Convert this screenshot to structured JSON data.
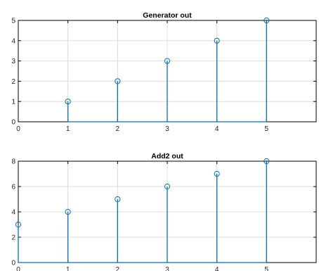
{
  "chart_data": [
    {
      "type": "stem",
      "title": "Generator out",
      "xlabel": "",
      "ylabel": "",
      "x": [
        1,
        2,
        3,
        4,
        5
      ],
      "values": [
        1,
        2,
        3,
        4,
        5
      ],
      "xlim": [
        0,
        6
      ],
      "ylim": [
        0,
        5
      ],
      "xticks": [
        "0",
        "1",
        "2",
        "3",
        "4",
        "5"
      ],
      "yticks": [
        "0",
        "1",
        "2",
        "3",
        "4",
        "5"
      ],
      "grid": true,
      "color": "#0072BD"
    },
    {
      "type": "stem",
      "title": "Add2 out",
      "xlabel": "",
      "ylabel": "",
      "x": [
        0,
        1,
        2,
        3,
        4,
        5
      ],
      "values": [
        3,
        4,
        5,
        6,
        7,
        8
      ],
      "xlim": [
        0,
        6
      ],
      "ylim": [
        0,
        8
      ],
      "xticks": [
        "0",
        "1",
        "2",
        "3",
        "4",
        "5"
      ],
      "yticks": [
        "0",
        "2",
        "4",
        "6",
        "8"
      ],
      "grid": true,
      "color": "#0072BD"
    }
  ]
}
